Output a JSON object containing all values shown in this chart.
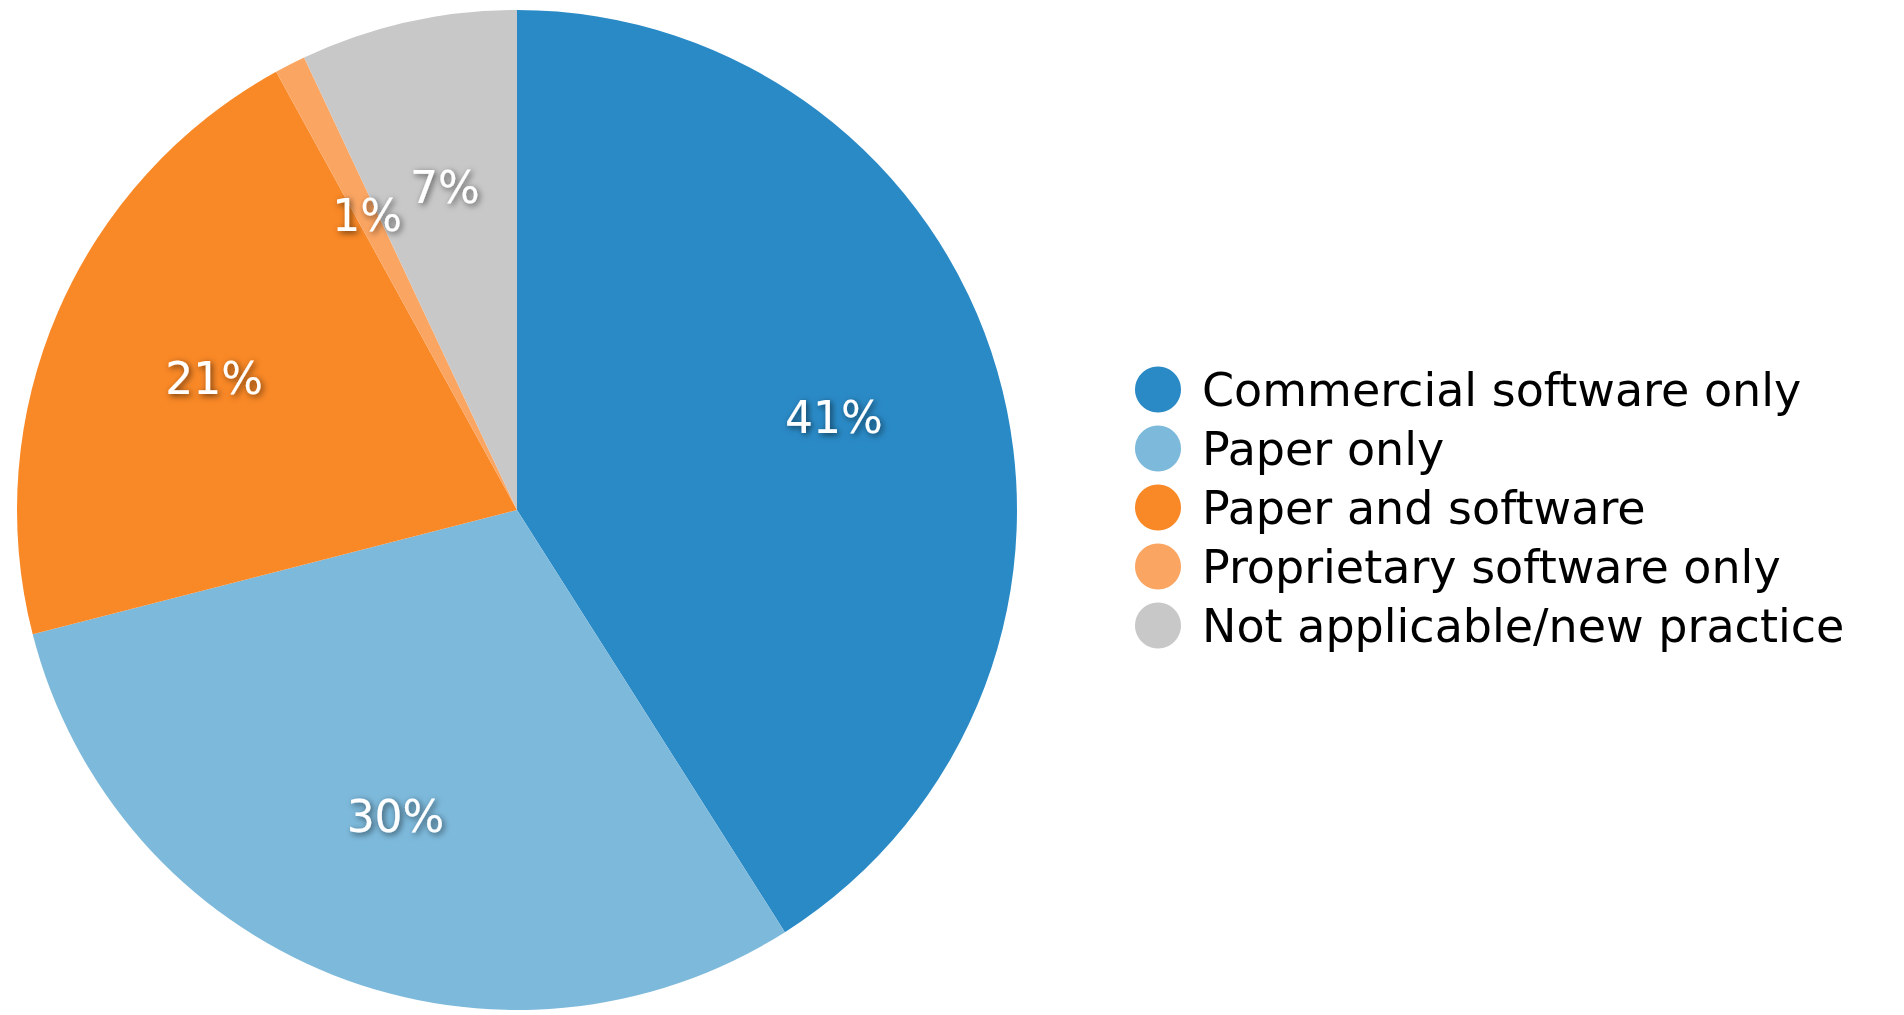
{
  "chart_data": {
    "type": "pie",
    "categories": [
      "Commercial software only",
      "Paper only",
      "Paper and software",
      "Proprietary software only",
      "Not applicable/new practice"
    ],
    "values": [
      41,
      30,
      21,
      1,
      7
    ],
    "colors": [
      "#2a8ac6",
      "#7db9db",
      "#f98826",
      "#fba562",
      "#c8c8c8"
    ],
    "value_labels": [
      "41%",
      "30%",
      "21%",
      "1%",
      "7%"
    ],
    "legend": "right"
  }
}
